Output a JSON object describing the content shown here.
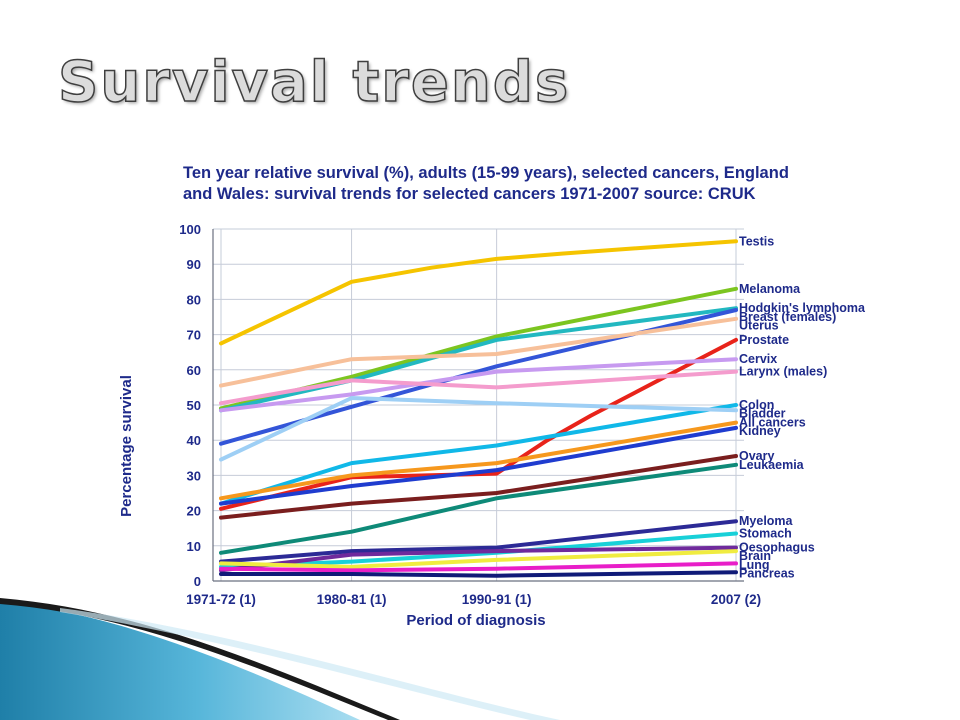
{
  "slide": {
    "title": "Survival trends"
  },
  "chart_data": {
    "type": "line",
    "title": "Ten year relative survival (%), adults (15-99 years), selected cancers, England and Wales: survival trends for selected cancers 1971-2007 source: CRUK",
    "xlabel": "Period of diagnosis",
    "ylabel": "Percentage survival",
    "ylim": [
      0,
      100
    ],
    "yticks": [
      0,
      10,
      20,
      30,
      40,
      50,
      60,
      70,
      80,
      90,
      100
    ],
    "categories": [
      "1971-72 (1)",
      "1980-81 (1)",
      "1990-91 (1)",
      "2007 (2)"
    ],
    "x_years": [
      1971.5,
      1980.5,
      1990.5,
      2007
    ],
    "grid": true,
    "legend": "right-end labels",
    "series": [
      {
        "name": "Testis",
        "color": "#f5c400",
        "points": [
          [
            1971.5,
            67.5
          ],
          [
            1980.5,
            85
          ],
          [
            1986,
            89
          ],
          [
            1990.5,
            91.5
          ],
          [
            1995,
            93
          ],
          [
            2000,
            94.5
          ],
          [
            2007,
            96.5
          ]
        ]
      },
      {
        "name": "Melanoma",
        "color": "#7cc520",
        "points": [
          [
            1971.5,
            49
          ],
          [
            1980.5,
            58
          ],
          [
            1990.5,
            69.5
          ],
          [
            2007,
            83
          ]
        ]
      },
      {
        "name": "Hodgkin's lymphoma",
        "color": "#22b8c0",
        "points": [
          [
            1971.5,
            48.5
          ],
          [
            1980.5,
            57
          ],
          [
            1990.5,
            68.5
          ],
          [
            2007,
            77.5
          ]
        ]
      },
      {
        "name": "Breast (females)",
        "color": "#3355d8",
        "points": [
          [
            1971.5,
            39
          ],
          [
            1980.5,
            49.5
          ],
          [
            1990.5,
            61
          ],
          [
            2007,
            77
          ]
        ]
      },
      {
        "name": "Uterus",
        "color": "#f7c09a",
        "points": [
          [
            1971.5,
            55.5
          ],
          [
            1980.5,
            63
          ],
          [
            1990.5,
            64.5
          ],
          [
            2007,
            74.5
          ]
        ]
      },
      {
        "name": "Prostate",
        "color": "#e8231a",
        "points": [
          [
            1971.5,
            20.5
          ],
          [
            1980.5,
            29.5
          ],
          [
            1990.5,
            30.5
          ],
          [
            1994,
            40
          ],
          [
            1997,
            47
          ],
          [
            2007,
            68.5
          ]
        ]
      },
      {
        "name": "Cervix",
        "color": "#c79af0",
        "points": [
          [
            1971.5,
            48.5
          ],
          [
            1980.5,
            53
          ],
          [
            1990.5,
            59.5
          ],
          [
            2007,
            63
          ]
        ]
      },
      {
        "name": "Larynx (males)",
        "color": "#f49ccd",
        "points": [
          [
            1971.5,
            50.5
          ],
          [
            1980.5,
            57
          ],
          [
            1990.5,
            55
          ],
          [
            2007,
            59.5
          ]
        ]
      },
      {
        "name": "Colon",
        "color": "#10b8e8",
        "points": [
          [
            1971.5,
            22
          ],
          [
            1980.5,
            33.5
          ],
          [
            1990.5,
            38.5
          ],
          [
            2007,
            50
          ]
        ]
      },
      {
        "name": "Bladder",
        "color": "#9ecff5",
        "points": [
          [
            1971.5,
            34.5
          ],
          [
            1980.5,
            52
          ],
          [
            1990.5,
            50.5
          ],
          [
            2007,
            48.5
          ]
        ]
      },
      {
        "name": "All cancers",
        "color": "#f6981d",
        "points": [
          [
            1971.5,
            23.5
          ],
          [
            1980.5,
            30
          ],
          [
            1990.5,
            33.5
          ],
          [
            2007,
            45
          ]
        ]
      },
      {
        "name": "Kidney",
        "color": "#1f3ccf",
        "points": [
          [
            1971.5,
            22
          ],
          [
            1980.5,
            27
          ],
          [
            1990.5,
            31.5
          ],
          [
            2007,
            43.5
          ]
        ]
      },
      {
        "name": "Ovary",
        "color": "#7a1e1e",
        "points": [
          [
            1971.5,
            18
          ],
          [
            1980.5,
            22
          ],
          [
            1990.5,
            25
          ],
          [
            2007,
            35.5
          ]
        ]
      },
      {
        "name": "Leukaemia",
        "color": "#0e8a78",
        "points": [
          [
            1971.5,
            8
          ],
          [
            1980.5,
            14
          ],
          [
            1990.5,
            23.5
          ],
          [
            2007,
            33
          ]
        ]
      },
      {
        "name": "Myeloma",
        "color": "#2c2a96",
        "points": [
          [
            1971.5,
            5.5
          ],
          [
            1980.5,
            8.5
          ],
          [
            1990.5,
            9.5
          ],
          [
            2007,
            17
          ]
        ]
      },
      {
        "name": "Stomach",
        "color": "#18d0d8",
        "points": [
          [
            1971.5,
            4
          ],
          [
            1980.5,
            5.5
          ],
          [
            1990.5,
            8
          ],
          [
            2007,
            13.5
          ]
        ]
      },
      {
        "name": "Oesophagus",
        "color": "#6f2a9c",
        "points": [
          [
            1971.5,
            3
          ],
          [
            1980.5,
            7.5
          ],
          [
            1990.5,
            8.5
          ],
          [
            2007,
            9.5
          ]
        ]
      },
      {
        "name": "Brain",
        "color": "#f0ec40",
        "points": [
          [
            1971.5,
            5
          ],
          [
            1980.5,
            4
          ],
          [
            1990.5,
            6
          ],
          [
            2007,
            8.5
          ]
        ]
      },
      {
        "name": "Lung",
        "color": "#e81ec8",
        "points": [
          [
            1971.5,
            3.5
          ],
          [
            1980.5,
            3
          ],
          [
            1990.5,
            3.5
          ],
          [
            2007,
            5
          ]
        ]
      },
      {
        "name": "Pancreas",
        "color": "#101a78",
        "points": [
          [
            1971.5,
            2
          ],
          [
            1980.5,
            2
          ],
          [
            1990.5,
            1.5
          ],
          [
            2007,
            2.5
          ]
        ]
      }
    ]
  }
}
